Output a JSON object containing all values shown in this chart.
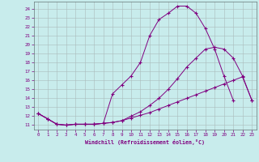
{
  "xlabel": "Windchill (Refroidissement éolien,°C)",
  "bg_color": "#c8ecec",
  "line_color": "#800080",
  "xlim": [
    -0.5,
    23.5
  ],
  "ylim": [
    10.5,
    24.8
  ],
  "xticks": [
    0,
    1,
    2,
    3,
    4,
    5,
    6,
    7,
    8,
    9,
    10,
    11,
    12,
    13,
    14,
    15,
    16,
    17,
    18,
    19,
    20,
    21,
    22,
    23
  ],
  "yticks": [
    11,
    12,
    13,
    14,
    15,
    16,
    17,
    18,
    19,
    20,
    21,
    22,
    23,
    24
  ],
  "curve1_x": [
    0,
    1,
    2,
    3,
    4,
    5,
    6,
    7,
    8,
    9,
    10,
    11,
    12,
    13,
    14,
    15,
    16,
    17,
    18,
    19,
    20,
    21,
    22,
    23
  ],
  "curve1_y": [
    12.3,
    11.7,
    11.1,
    11.0,
    11.1,
    11.1,
    11.1,
    11.2,
    11.3,
    11.5,
    11.8,
    12.1,
    12.4,
    12.8,
    13.2,
    13.6,
    14.0,
    14.4,
    14.8,
    15.2,
    15.6,
    16.0,
    16.4,
    13.8
  ],
  "curve2_x": [
    0,
    1,
    2,
    3,
    4,
    5,
    6,
    7,
    8,
    9,
    10,
    11,
    12,
    13,
    14,
    15,
    16,
    17,
    18,
    19,
    20,
    21
  ],
  "curve2_y": [
    12.3,
    11.7,
    11.1,
    11.0,
    11.1,
    11.1,
    11.1,
    11.2,
    14.5,
    15.5,
    16.5,
    18.0,
    21.0,
    22.8,
    23.5,
    24.3,
    24.3,
    23.5,
    21.8,
    19.5,
    16.5,
    13.8
  ],
  "curve3_x": [
    0,
    1,
    2,
    3,
    4,
    5,
    6,
    7,
    8,
    9,
    10,
    11,
    12,
    13,
    14,
    15,
    16,
    17,
    18,
    19,
    20,
    21,
    22,
    23
  ],
  "curve3_y": [
    12.3,
    11.7,
    11.1,
    11.0,
    11.1,
    11.1,
    11.1,
    11.2,
    11.3,
    11.5,
    12.0,
    12.5,
    13.2,
    14.0,
    15.0,
    16.2,
    17.5,
    18.5,
    19.5,
    19.7,
    19.5,
    18.5,
    16.5,
    13.8
  ]
}
